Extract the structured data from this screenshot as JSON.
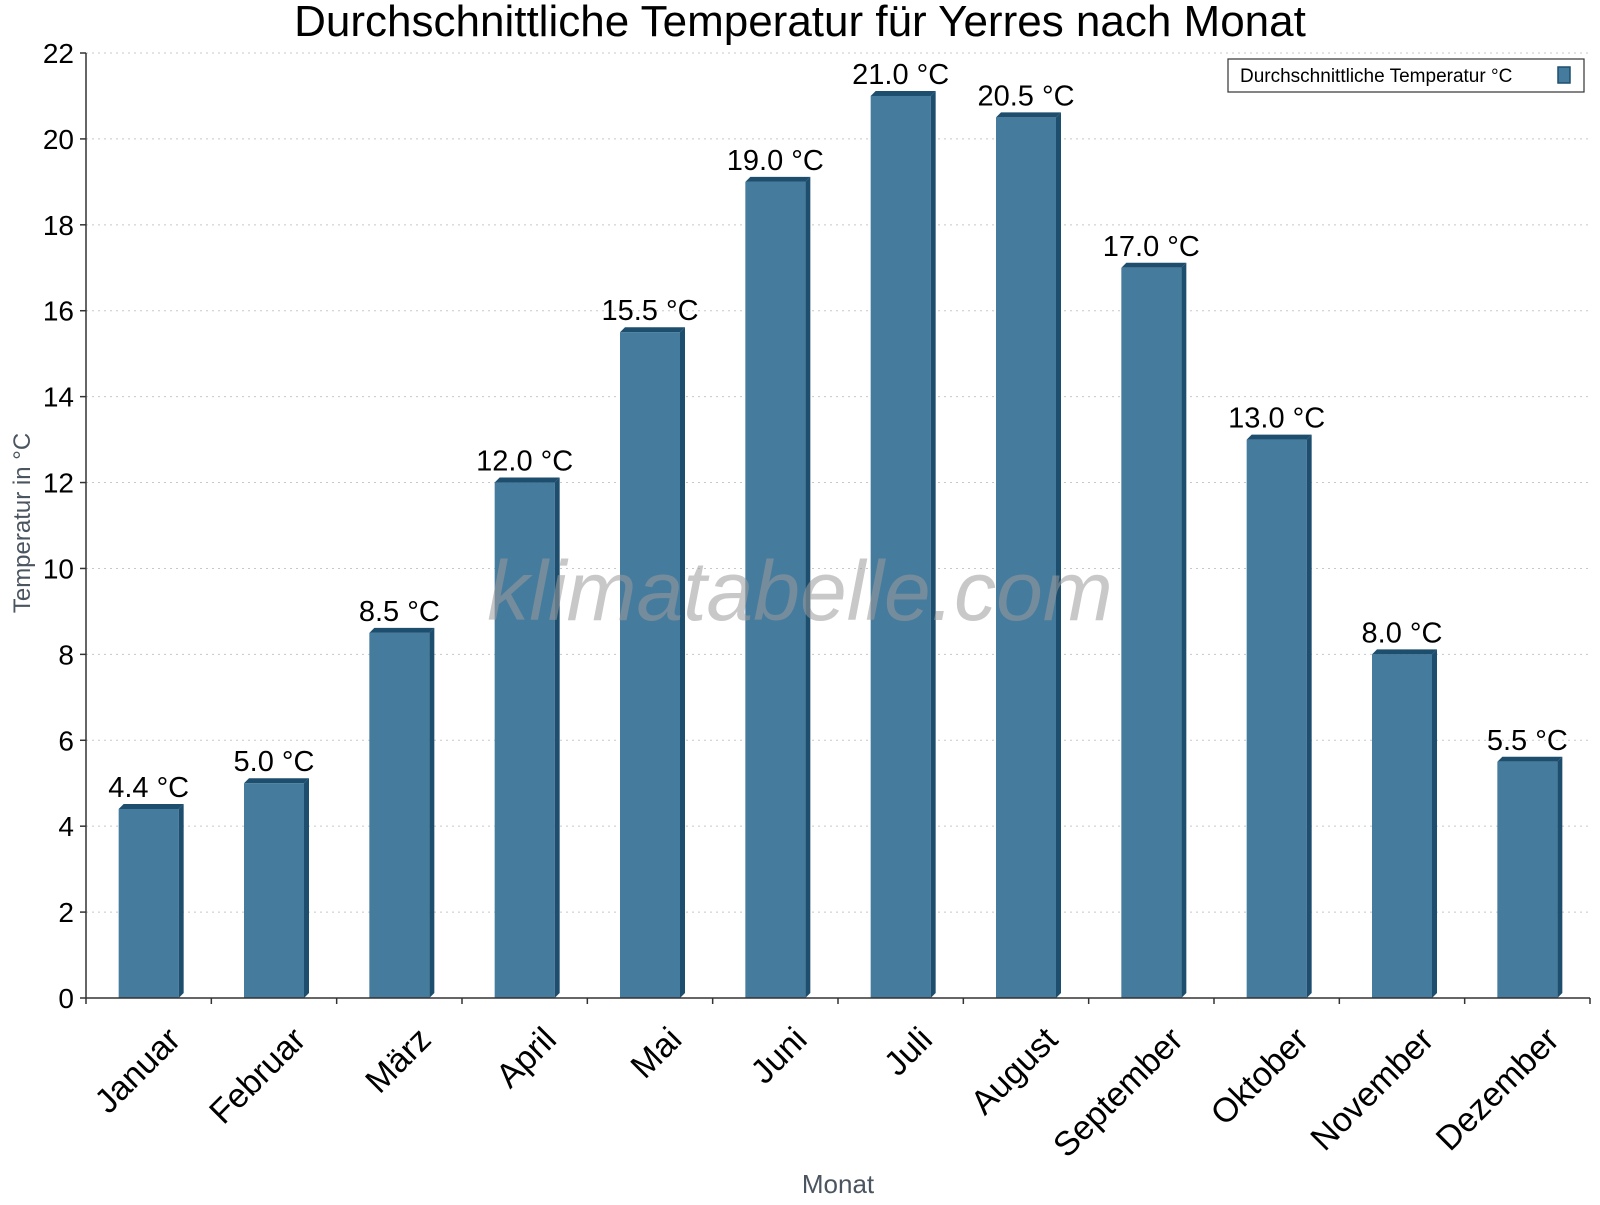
{
  "chart_data": {
    "type": "bar",
    "title": "Durchschnittliche Temperatur für Yerres nach Monat",
    "xlabel": "Monat",
    "ylabel": "Temperatur in °C",
    "categories": [
      "Januar",
      "Februar",
      "März",
      "April",
      "Mai",
      "Juni",
      "Juli",
      "August",
      "September",
      "Oktober",
      "November",
      "Dezember"
    ],
    "series": [
      {
        "name": "Durchschnittliche Temperatur °C",
        "values": [
          4.4,
          5.0,
          8.5,
          12.0,
          15.5,
          19.0,
          21.0,
          20.5,
          17.0,
          13.0,
          8.0,
          5.5
        ],
        "labels": [
          "4.4 °C",
          "5.0 °C",
          "8.5 °C",
          "12.0 °C",
          "15.5 °C",
          "19.0 °C",
          "21.0 °C",
          "20.5 °C",
          "17.0 °C",
          "13.0 °C",
          "8.0 °C",
          "5.5 °C"
        ]
      }
    ],
    "ylim": [
      0,
      22
    ],
    "yticks": [
      0,
      2,
      4,
      6,
      8,
      10,
      12,
      14,
      16,
      18,
      20,
      22
    ],
    "grid": true,
    "legend_position": "top-right",
    "watermark": "klimatabelle.com",
    "colors": {
      "bar_face": "#457b9d",
      "bar_side": "#1d4e6e",
      "axis": "#333333",
      "grid": "#c8c8c8",
      "axis_label": "#4a5560"
    }
  }
}
